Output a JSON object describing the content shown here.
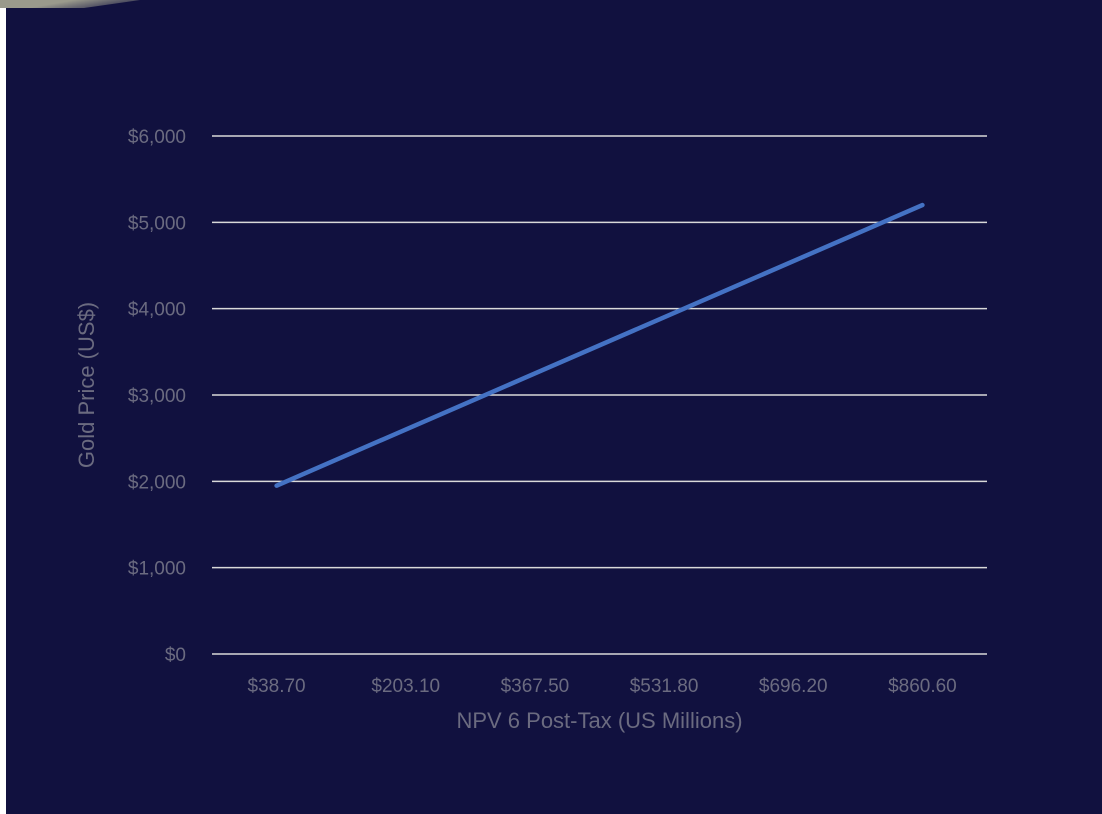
{
  "colors": {
    "background": "#11113f",
    "gridline": "#d9d9d9",
    "line": "#4472c4",
    "text": "#6b6b80",
    "corner_decoration": "#9a9a8c"
  },
  "chart_data": {
    "type": "line",
    "title": "",
    "xlabel": "NPV 6 Post-Tax (US Millions)",
    "ylabel": "Gold Price (US$)",
    "categories": [
      "$38.70",
      "$203.10",
      "$367.50",
      "$531.80",
      "$696.20",
      "$860.60"
    ],
    "ylim": [
      0,
      6000
    ],
    "y_ticks": [
      0,
      1000,
      2000,
      3000,
      4000,
      5000,
      6000
    ],
    "y_tick_labels": [
      "$0",
      "$1,000",
      "$2,000",
      "$3,000",
      "$4,000",
      "$5,000",
      "$6,000"
    ],
    "grid": true,
    "legend": "none",
    "series": [
      {
        "x": [
          38.7,
          860.6
        ],
        "values": [
          1950,
          5200
        ]
      }
    ]
  }
}
